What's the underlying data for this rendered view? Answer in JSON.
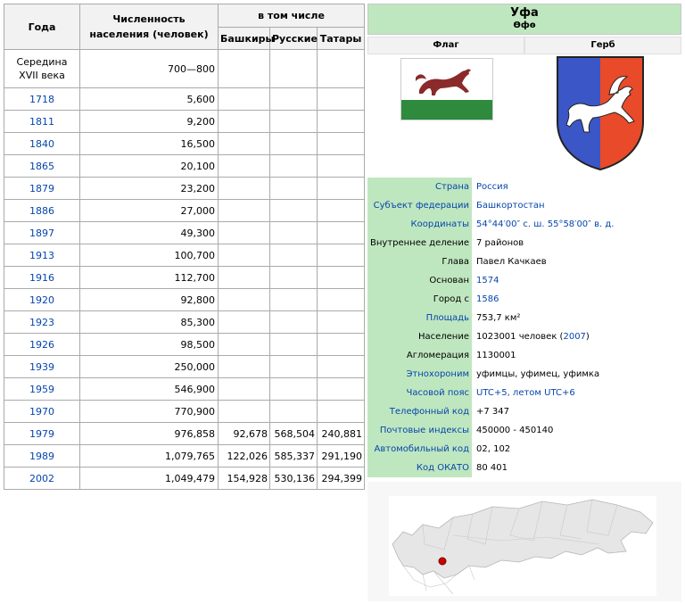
{
  "population_table": {
    "headers": {
      "year": "Года",
      "population": "Численность населения (человек)",
      "including": "в том числе",
      "bashkirs": "Башкиры",
      "russians": "Русские",
      "tatars": "Татары"
    },
    "rows": [
      {
        "year": "Середина XVII века",
        "population": "700—800",
        "bashkirs": "",
        "russians": "",
        "tatars": ""
      },
      {
        "year": "1718",
        "population": "5,600",
        "bashkirs": "",
        "russians": "",
        "tatars": ""
      },
      {
        "year": "1811",
        "population": "9,200",
        "bashkirs": "",
        "russians": "",
        "tatars": ""
      },
      {
        "year": "1840",
        "population": "16,500",
        "bashkirs": "",
        "russians": "",
        "tatars": ""
      },
      {
        "year": "1865",
        "population": "20,100",
        "bashkirs": "",
        "russians": "",
        "tatars": ""
      },
      {
        "year": "1879",
        "population": "23,200",
        "bashkirs": "",
        "russians": "",
        "tatars": ""
      },
      {
        "year": "1886",
        "population": "27,000",
        "bashkirs": "",
        "russians": "",
        "tatars": ""
      },
      {
        "year": "1897",
        "population": "49,300",
        "bashkirs": "",
        "russians": "",
        "tatars": ""
      },
      {
        "year": "1913",
        "population": "100,700",
        "bashkirs": "",
        "russians": "",
        "tatars": ""
      },
      {
        "year": "1916",
        "population": "112,700",
        "bashkirs": "",
        "russians": "",
        "tatars": ""
      },
      {
        "year": "1920",
        "population": "92,800",
        "bashkirs": "",
        "russians": "",
        "tatars": ""
      },
      {
        "year": "1923",
        "population": "85,300",
        "bashkirs": "",
        "russians": "",
        "tatars": ""
      },
      {
        "year": "1926",
        "population": "98,500",
        "bashkirs": "",
        "russians": "",
        "tatars": ""
      },
      {
        "year": "1939",
        "population": "250,000",
        "bashkirs": "",
        "russians": "",
        "tatars": ""
      },
      {
        "year": "1959",
        "population": "546,900",
        "bashkirs": "",
        "russians": "",
        "tatars": ""
      },
      {
        "year": "1970",
        "population": "770,900",
        "bashkirs": "",
        "russians": "",
        "tatars": ""
      },
      {
        "year": "1979",
        "population": "976,858",
        "bashkirs": "92,678",
        "russians": "568,504",
        "tatars": "240,881"
      },
      {
        "year": "1989",
        "population": "1,079,765",
        "bashkirs": "122,026",
        "russians": "585,337",
        "tatars": "291,190"
      },
      {
        "year": "2002",
        "population": "1,049,479",
        "bashkirs": "154,928",
        "russians": "530,136",
        "tatars": "294,399"
      }
    ]
  },
  "infobox": {
    "title": "Уфа",
    "subtitle": "Өфө",
    "flag_label": "Флаг",
    "coat_label": "Герб",
    "rows": [
      {
        "label": "Страна",
        "value": "Россия",
        "label_link": true,
        "value_link": true
      },
      {
        "label": "Субъект федерации",
        "value": "Башкортостан",
        "label_link": true,
        "value_link": true
      },
      {
        "label": "Координаты",
        "value": "54°44′00″ с. ш. 55°58′00″ в. д.",
        "label_link": true,
        "value_link": true
      },
      {
        "label": "Внутреннее деление",
        "value": "7 районов",
        "label_link": false,
        "value_link": false
      },
      {
        "label": "Глава",
        "value": "Павел Качкаев",
        "label_link": false,
        "value_link": false
      },
      {
        "label": "Основан",
        "value": "1574",
        "label_link": false,
        "value_link": true
      },
      {
        "label": "Город с",
        "value": "1586",
        "label_link": false,
        "value_link": true
      },
      {
        "label": "Площадь",
        "value": "753,7 км²",
        "label_link": true,
        "value_link": false
      },
      {
        "label": "Население",
        "value": "1023001 человек",
        "value_suffix_link": "2007",
        "label_link": false,
        "value_link": false
      },
      {
        "label": "Агломерация",
        "value": "1130001",
        "label_link": false,
        "value_link": false
      },
      {
        "label": "Этнохороним",
        "value": "уфимцы, уфимец, уфимка",
        "label_link": true,
        "value_link": false
      },
      {
        "label": "Часовой пояс",
        "value": "UTC+5, летом UTC+6",
        "label_link": true,
        "value_link": true
      },
      {
        "label": "Телефонный код",
        "value": "+7 347",
        "label_link": true,
        "value_link": false
      },
      {
        "label": "Почтовые индексы",
        "value": "450000 - 450140",
        "label_link": true,
        "value_link": false
      },
      {
        "label": "Автомобильный код",
        "value": "02, 102",
        "label_link": true,
        "value_link": false
      },
      {
        "label": "Код ОКАТО",
        "value": "80 401",
        "label_link": true,
        "value_link": false
      }
    ]
  },
  "colors": {
    "infobox_green": "#bfe7bf",
    "link_blue": "#0645ad",
    "coat_blue": "#3b56c6",
    "coat_red": "#e84a2a",
    "flag_green": "#2e8b3e",
    "flag_animal": "#8b2a2a",
    "map_marker": "#cc0000"
  }
}
